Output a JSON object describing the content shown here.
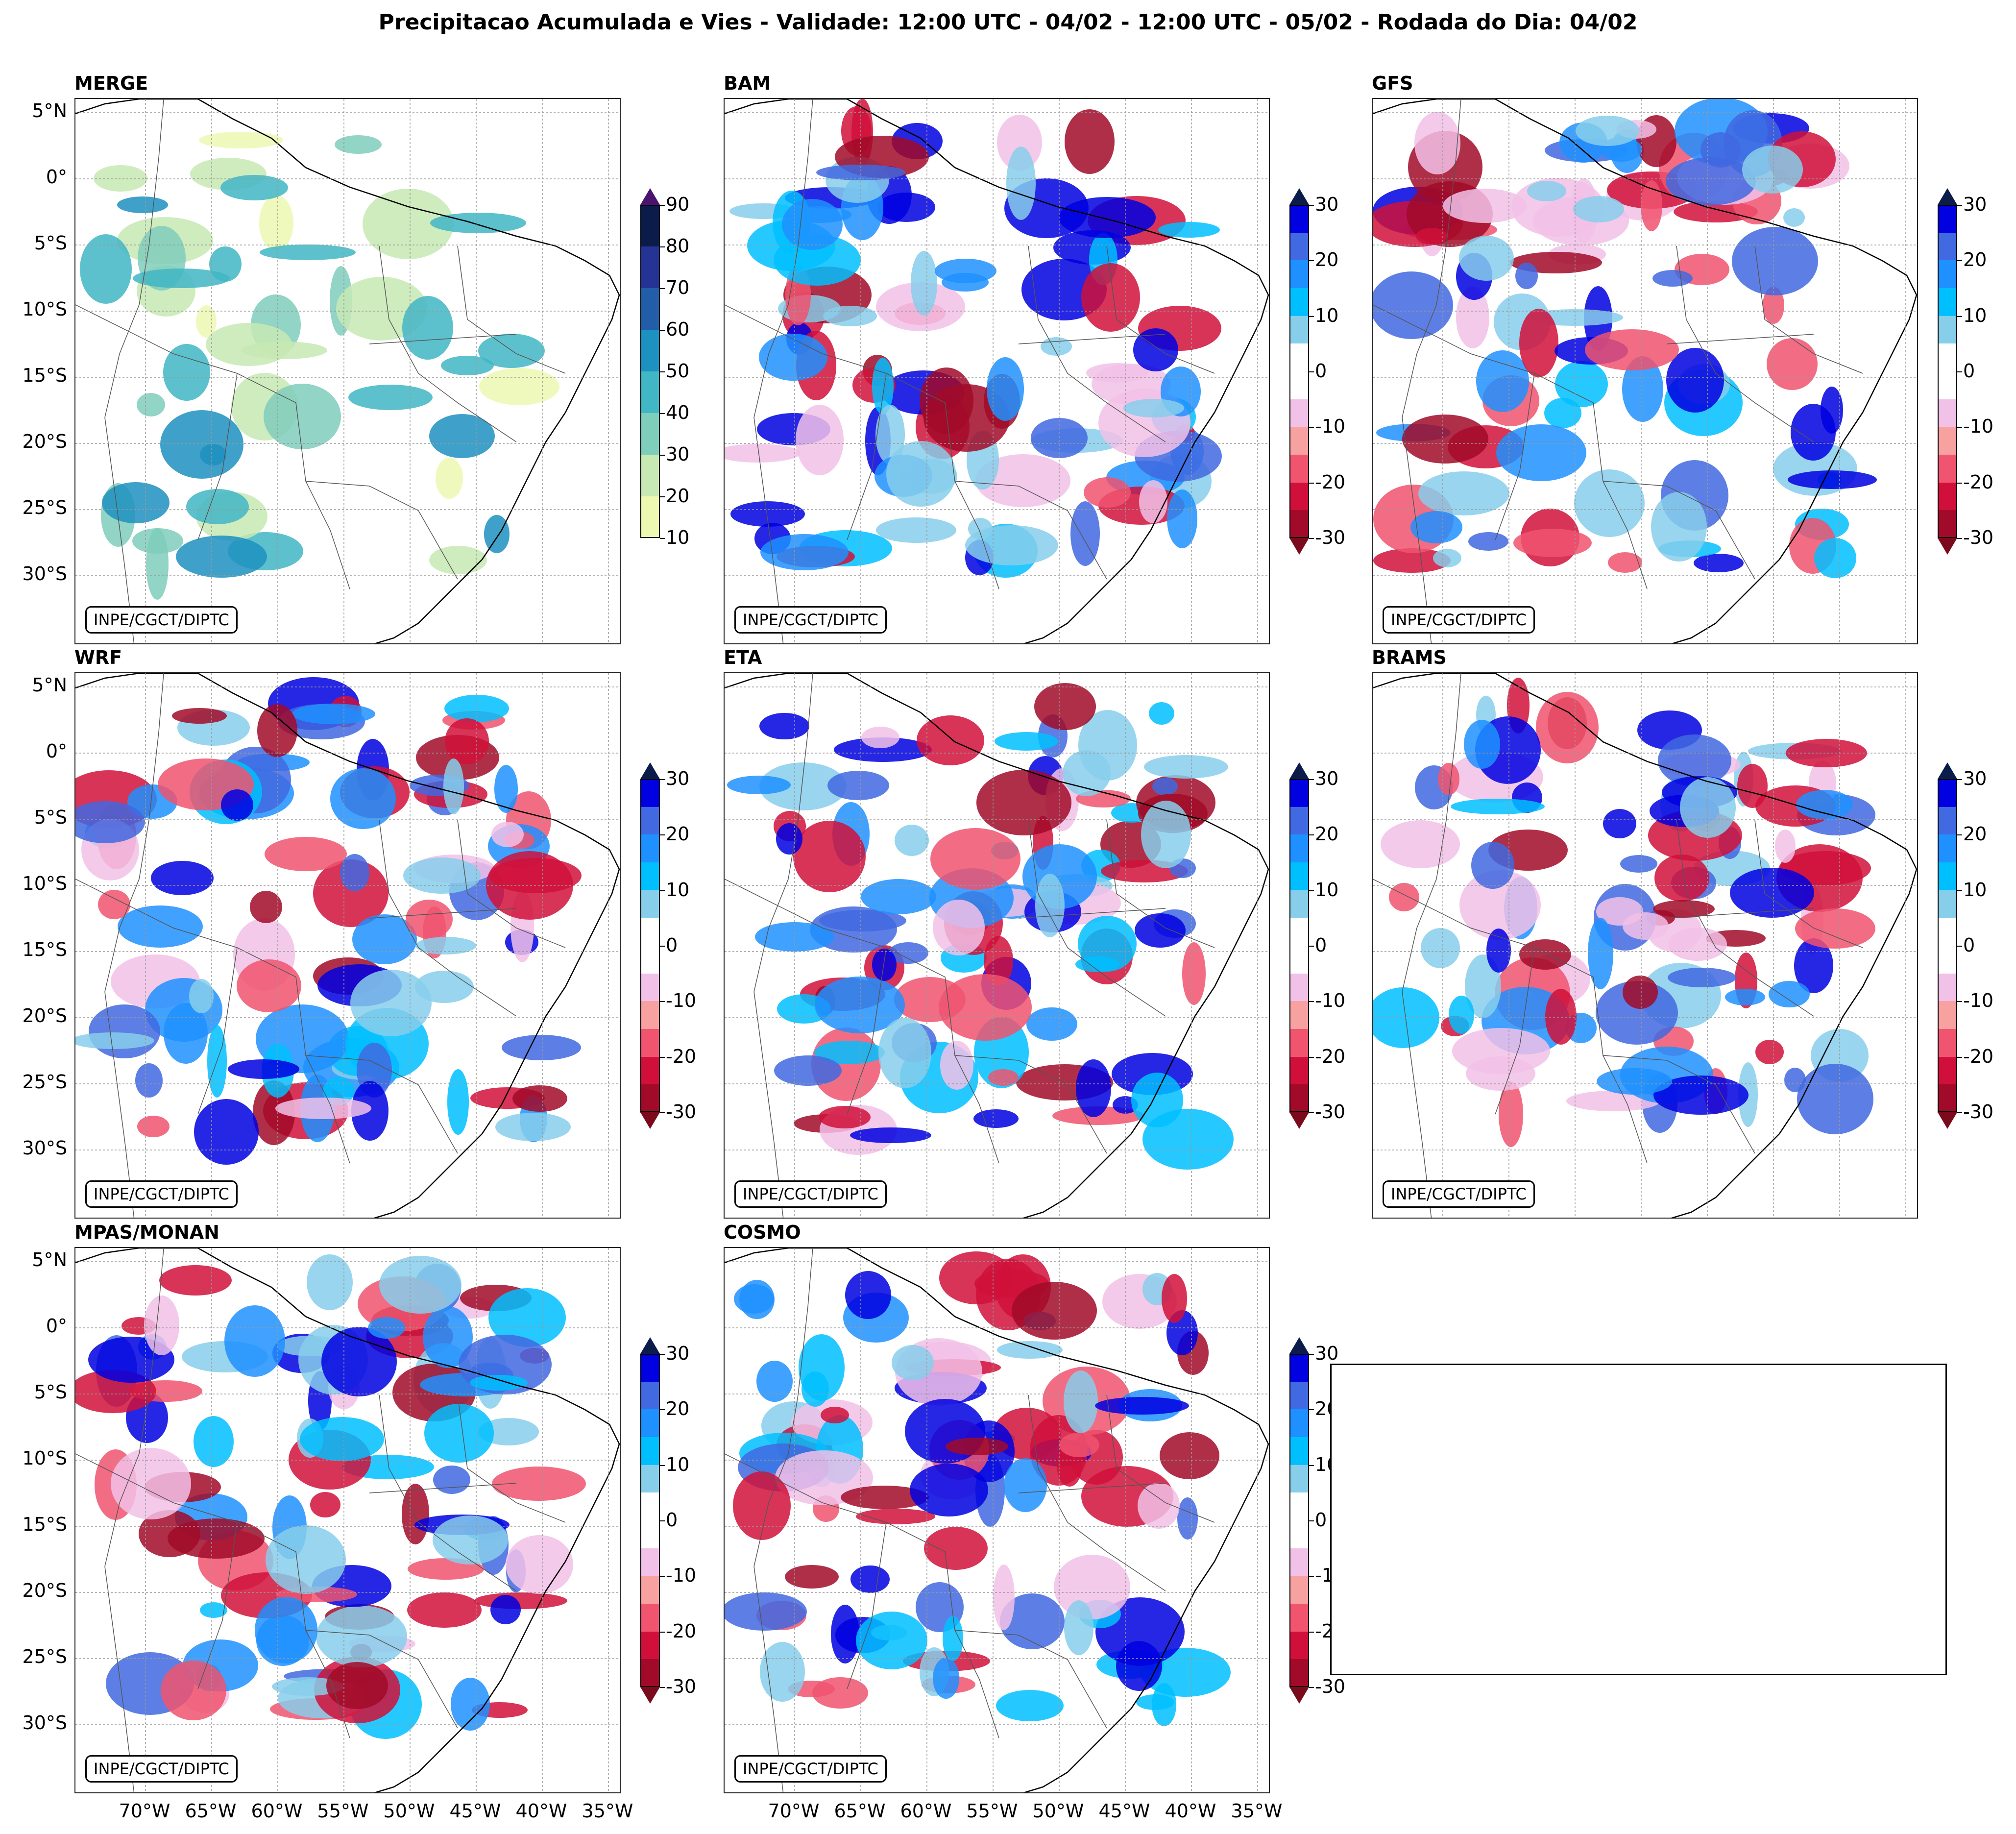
{
  "title": "Precipitacao Acumulada e Vies - Validade: 12:00 UTC - 04/02 - 12:00 UTC - 05/02 - Rodada do Dia: 04/02",
  "credit": "INPE/CGCT/DIPTC",
  "panels": [
    {
      "name": "MERGE"
    },
    {
      "name": "BAM"
    },
    {
      "name": "GFS"
    },
    {
      "name": "WRF"
    },
    {
      "name": "ETA"
    },
    {
      "name": "BRAMS"
    },
    {
      "name": "MPAS/MONAN"
    },
    {
      "name": "COSMO"
    }
  ],
  "lat_labels": [
    "5°N",
    "0°",
    "5°S",
    "10°S",
    "15°S",
    "20°S",
    "25°S",
    "30°S"
  ],
  "lon_labels": [
    "70°W",
    "65°W",
    "60°W",
    "55°W",
    "50°W",
    "45°W",
    "40°W",
    "35°W"
  ],
  "colorbar_precip": {
    "ticks": [
      "90",
      "80",
      "70",
      "60",
      "50",
      "40",
      "30",
      "20",
      "10"
    ],
    "colors": [
      "#0b1c4a",
      "#253494",
      "#225ea8",
      "#1d91c0",
      "#41b6c4",
      "#7fcdbb",
      "#c7e9b4",
      "#edf8b1"
    ],
    "arrow_top": "#4a1370",
    "arrow_bottom": "#ffffff"
  },
  "colorbar_bias": {
    "ticks": [
      "30",
      "20",
      "10",
      "0",
      "-10",
      "-20",
      "-30"
    ],
    "colors": [
      "#0000e0",
      "#4169e1",
      "#1e90ff",
      "#00bfff",
      "#87ceeb",
      "#ffffff",
      "#ffffff",
      "#f2c1e8",
      "#f7a1a1",
      "#f0546e",
      "#d0103a",
      "#a10a28"
    ],
    "arrow_top": "#0b1c4a",
    "arrow_bottom": "#7a0a1c"
  }
}
